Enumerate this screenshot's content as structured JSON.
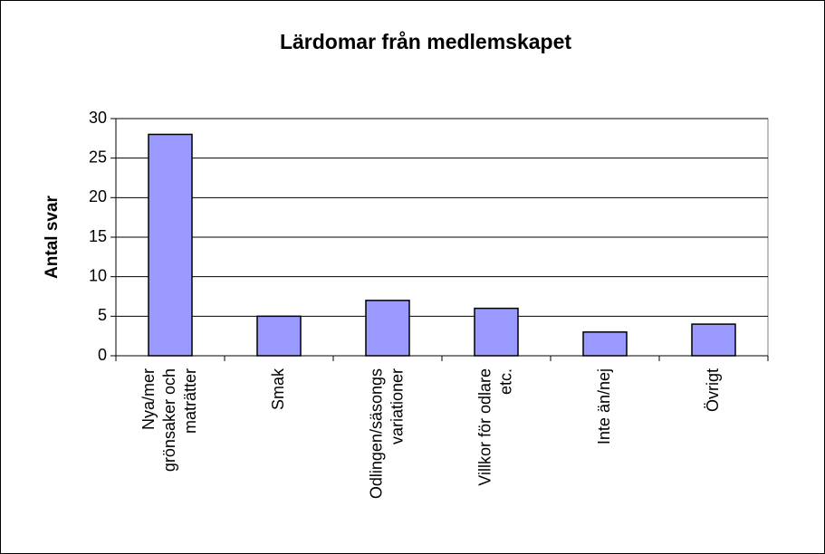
{
  "chart_data": {
    "type": "bar",
    "title": "Lärdomar från medlemskapet",
    "y_label": "Antal svar",
    "categories": [
      "Nya/mer\ngrönsaker och\nmaträtter",
      "Smak",
      "Odlingen/säsongs\nvariationer",
      "Villkor för odlare\netc.",
      "Inte än/nej",
      "Övrigt"
    ],
    "values": [
      28,
      5,
      7,
      6,
      3,
      4
    ],
    "color": "#9999ff",
    "ylim": [
      0,
      30
    ],
    "yticks": [
      0,
      5,
      10,
      15,
      20,
      25,
      30
    ],
    "grid": true
  }
}
